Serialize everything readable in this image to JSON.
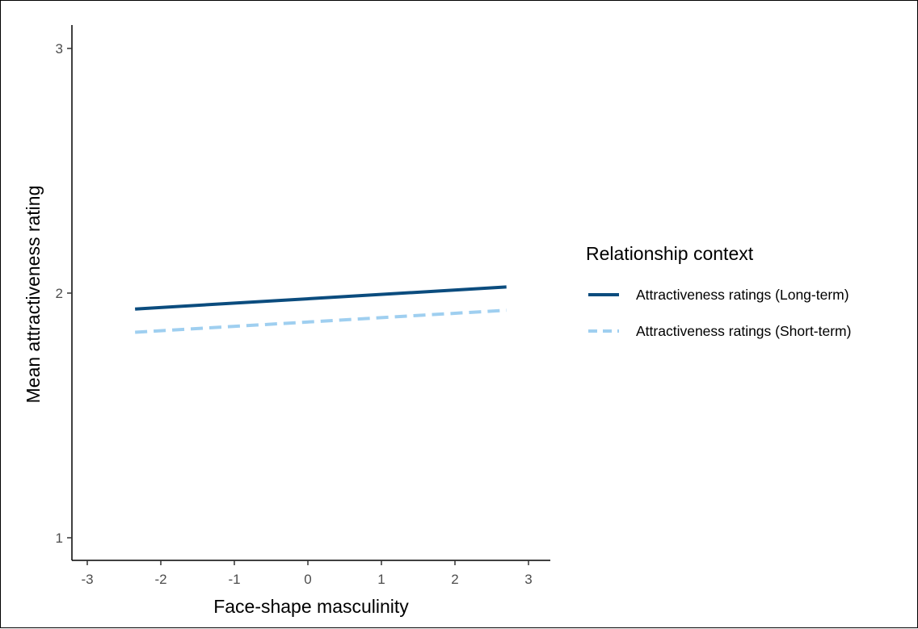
{
  "chart_data": {
    "type": "line",
    "title": "",
    "xlabel": "Face-shape masculinity",
    "ylabel": "Mean attractiveness rating",
    "xlim": [
      -3.3,
      3.3
    ],
    "ylim": [
      0.9,
      3.1
    ],
    "xticks": [
      -3,
      -2,
      -1,
      0,
      1,
      2,
      3
    ],
    "xtick_labels": [
      "-3",
      "-2",
      "-1",
      "0",
      "1",
      "2",
      "3"
    ],
    "yticks": [
      1,
      2,
      3
    ],
    "ytick_labels": [
      "1",
      "2",
      "3"
    ],
    "grid": false,
    "legend": {
      "title": "Relationship context",
      "position": "right"
    },
    "series": [
      {
        "name": "Attractiveness ratings (Long-term)",
        "x": [
          -2.35,
          2.7
        ],
        "y": [
          1.935,
          2.025
        ],
        "color": "#0b4c7e",
        "dash": "solid"
      },
      {
        "name": "Attractiveness ratings (Short-term)",
        "x": [
          -2.35,
          2.7
        ],
        "y": [
          1.84,
          1.93
        ],
        "color": "#9fcff0",
        "dash": "dashed"
      }
    ]
  }
}
